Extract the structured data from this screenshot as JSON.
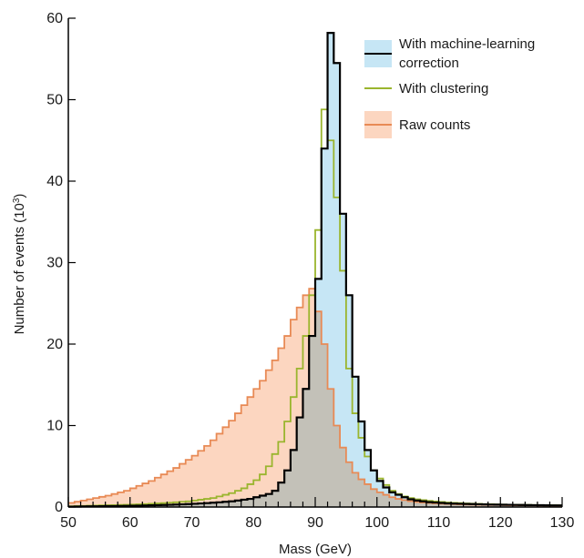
{
  "chart_data": {
    "type": "area",
    "title": "",
    "xlabel": "Mass (GeV)",
    "ylabel_main": "Number of events (10",
    "ylabel_exp": "3",
    "ylabel_close": ")",
    "xlim": [
      50,
      130
    ],
    "ylim": [
      0,
      60
    ],
    "xticks": [
      "50",
      "60",
      "70",
      "80",
      "90",
      "100",
      "110",
      "120",
      "130"
    ],
    "yticks": [
      "0",
      "10",
      "20",
      "30",
      "40",
      "50",
      "60"
    ],
    "grid": false,
    "legend_position": "top-right",
    "bin_width": 1,
    "x_start": 50,
    "series": [
      {
        "name": "With machine-learning correction",
        "legend_label_lines": [
          "With machine-learning",
          "correction"
        ],
        "line_color": "#000000",
        "fill_color": "#c6e6f5",
        "values": [
          0.05,
          0.06,
          0.07,
          0.08,
          0.09,
          0.1,
          0.11,
          0.12,
          0.13,
          0.14,
          0.15,
          0.17,
          0.19,
          0.21,
          0.23,
          0.25,
          0.27,
          0.3,
          0.33,
          0.36,
          0.4,
          0.44,
          0.48,
          0.53,
          0.58,
          0.64,
          0.7,
          0.8,
          0.9,
          1.0,
          1.2,
          1.4,
          1.6,
          2.0,
          3.0,
          4.5,
          7.0,
          11.0,
          14.5,
          21.0,
          28.0,
          44.0,
          58.2,
          54.5,
          36.0,
          26.0,
          16.0,
          10.5,
          7.0,
          4.5,
          3.2,
          2.4,
          1.8,
          1.5,
          1.2,
          0.95,
          0.8,
          0.7,
          0.6,
          0.55,
          0.5,
          0.45,
          0.42,
          0.4,
          0.38,
          0.36,
          0.34,
          0.32,
          0.3,
          0.29,
          0.28,
          0.27,
          0.26,
          0.25,
          0.24,
          0.23,
          0.22,
          0.21,
          0.2,
          0.2
        ]
      },
      {
        "name": "With clustering",
        "legend_label_lines": [
          "With clustering"
        ],
        "line_color": "#9ab52e",
        "fill_color": "none",
        "values": [
          0.1,
          0.12,
          0.14,
          0.16,
          0.18,
          0.2,
          0.22,
          0.24,
          0.26,
          0.28,
          0.3,
          0.33,
          0.36,
          0.4,
          0.44,
          0.48,
          0.53,
          0.58,
          0.64,
          0.7,
          0.8,
          0.9,
          1.0,
          1.1,
          1.3,
          1.5,
          1.7,
          2.0,
          2.3,
          2.8,
          3.3,
          4.0,
          5.0,
          6.5,
          8.0,
          10.5,
          13.5,
          17.0,
          21.0,
          26.0,
          34.0,
          48.8,
          45.0,
          38.0,
          29.0,
          17.0,
          11.5,
          8.5,
          6.2,
          4.5,
          3.5,
          2.7,
          2.0,
          1.6,
          1.3,
          1.1,
          0.95,
          0.85,
          0.75,
          0.68,
          0.62,
          0.56,
          0.52,
          0.48,
          0.45,
          0.42,
          0.39,
          0.36,
          0.34,
          0.32,
          0.3,
          0.29,
          0.28,
          0.27,
          0.26,
          0.25,
          0.24,
          0.23,
          0.22,
          0.21
        ]
      },
      {
        "name": "Raw counts",
        "legend_label_lines": [
          "Raw counts"
        ],
        "line_color": "#e88a55",
        "fill_color": "#fcd6c0",
        "values": [
          0.5,
          0.65,
          0.8,
          0.95,
          1.1,
          1.25,
          1.4,
          1.6,
          1.8,
          2.0,
          2.3,
          2.6,
          2.9,
          3.2,
          3.6,
          4.0,
          4.4,
          4.8,
          5.3,
          5.8,
          6.3,
          6.9,
          7.5,
          8.2,
          9.0,
          9.8,
          10.6,
          11.5,
          12.5,
          13.5,
          14.5,
          15.5,
          16.8,
          18.0,
          19.5,
          21.0,
          23.0,
          24.5,
          26.0,
          26.8,
          24.0,
          20.0,
          14.5,
          10.0,
          7.3,
          5.5,
          4.2,
          3.4,
          2.8,
          2.2,
          1.8,
          1.5,
          1.2,
          1.0,
          0.85,
          0.72,
          0.62,
          0.55,
          0.5,
          0.45,
          0.41,
          0.38,
          0.35,
          0.33,
          0.31,
          0.3,
          0.28,
          0.27,
          0.26,
          0.25,
          0.24,
          0.23,
          0.22,
          0.21,
          0.2,
          0.2,
          0.19,
          0.18,
          0.17,
          0.17
        ]
      }
    ]
  }
}
